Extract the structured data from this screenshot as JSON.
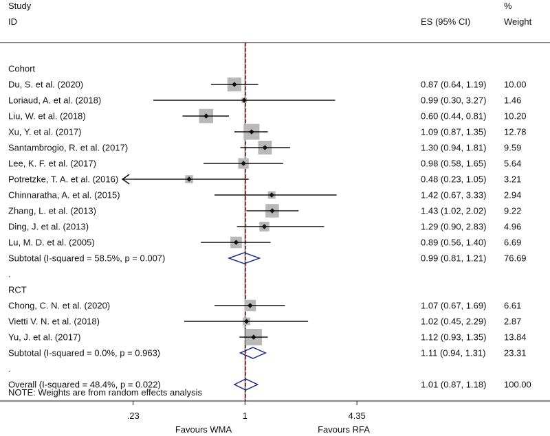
{
  "chart_data": {
    "type": "forest",
    "header": {
      "study_line1": "Study",
      "study_line2": "ID",
      "es_label": "ES (95% CI)",
      "weight_line1": "%",
      "weight_line2": "Weight"
    },
    "x_scale": "log",
    "xlim": [
      0.04,
      55
    ],
    "x_ticks": [
      {
        "value": 0.23,
        "label": ".23"
      },
      {
        "value": 1,
        "label": "1"
      },
      {
        "value": 4.35,
        "label": "4.35"
      }
    ],
    "overall_line_value": 1.01,
    "favours_left": "Favours WMA",
    "favours_right": "Favours RFA",
    "note": "NOTE: Weights are from random effects analysis",
    "rows": [
      {
        "kind": "group",
        "label": "Cohort"
      },
      {
        "kind": "study",
        "label": "Du, S. et al. (2020)",
        "es": 0.87,
        "lo": 0.64,
        "hi": 1.19,
        "es_text": "0.87 (0.64, 1.19)",
        "weight": 10.0,
        "weight_text": "10.00"
      },
      {
        "kind": "study",
        "label": "Loriaud, A. et al. (2018)",
        "es": 0.99,
        "lo": 0.3,
        "hi": 3.27,
        "es_text": "0.99 (0.30, 3.27)",
        "weight": 1.46,
        "weight_text": "1.46"
      },
      {
        "kind": "study",
        "label": "Liu, W. et al. (2018)",
        "es": 0.6,
        "lo": 0.44,
        "hi": 0.81,
        "es_text": "0.60 (0.44, 0.81)",
        "weight": 10.2,
        "weight_text": "10.20"
      },
      {
        "kind": "study",
        "label": "Xu, Y. et al. (2017)",
        "es": 1.09,
        "lo": 0.87,
        "hi": 1.35,
        "es_text": "1.09 (0.87, 1.35)",
        "weight": 12.78,
        "weight_text": "12.78"
      },
      {
        "kind": "study",
        "label": "Santambrogio, R. et al. (2017)",
        "es": 1.3,
        "lo": 0.94,
        "hi": 1.81,
        "es_text": "1.30 (0.94, 1.81)",
        "weight": 9.59,
        "weight_text": "9.59"
      },
      {
        "kind": "study",
        "label": "Lee, K. F. et al. (2017)",
        "es": 0.98,
        "lo": 0.58,
        "hi": 1.65,
        "es_text": "0.98 (0.58, 1.65)",
        "weight": 5.64,
        "weight_text": "5.64"
      },
      {
        "kind": "study",
        "label": "Potretzke, T. A. et al. (2016)",
        "es": 0.48,
        "lo": 0.23,
        "hi": 1.05,
        "es_text": "0.48 (0.23, 1.05)",
        "weight": 3.21,
        "weight_text": "3.21",
        "arrow_left": true
      },
      {
        "kind": "study",
        "label": "Chinnaratha, A. et al. (2015)",
        "es": 1.42,
        "lo": 0.67,
        "hi": 3.33,
        "es_text": "1.42 (0.67, 3.33)",
        "weight": 2.94,
        "weight_text": "2.94"
      },
      {
        "kind": "study",
        "label": "Zhang, L. et al. (2013)",
        "es": 1.43,
        "lo": 1.02,
        "hi": 2.02,
        "es_text": "1.43 (1.02, 2.02)",
        "weight": 9.22,
        "weight_text": "9.22"
      },
      {
        "kind": "study",
        "label": "Ding, J. et al. (2013)",
        "es": 1.29,
        "lo": 0.9,
        "hi": 2.83,
        "es_text": "1.29 (0.90, 2.83)",
        "weight": 4.96,
        "weight_text": "4.96"
      },
      {
        "kind": "study",
        "label": "Lu, M. D. et al. (2005)",
        "es": 0.89,
        "lo": 0.56,
        "hi": 1.4,
        "es_text": "0.89 (0.56, 1.40)",
        "weight": 6.69,
        "weight_text": "6.69"
      },
      {
        "kind": "subtotal",
        "label": "Subtotal  (I-squared = 58.5%, p = 0.007)",
        "es": 0.99,
        "lo": 0.81,
        "hi": 1.21,
        "es_text": "0.99 (0.81, 1.21)",
        "weight": 76.69,
        "weight_text": "76.69"
      },
      {
        "kind": "gap",
        "label": "."
      },
      {
        "kind": "group",
        "label": "RCT"
      },
      {
        "kind": "study",
        "label": "Chong, C. N. et al. (2020)",
        "es": 1.07,
        "lo": 0.67,
        "hi": 1.69,
        "es_text": "1.07 (0.67, 1.69)",
        "weight": 6.61,
        "weight_text": "6.61"
      },
      {
        "kind": "study",
        "label": "Vietti V. N. et al. (2018)",
        "es": 1.02,
        "lo": 0.45,
        "hi": 2.29,
        "es_text": "1.02 (0.45, 2.29)",
        "weight": 2.87,
        "weight_text": "2.87"
      },
      {
        "kind": "study",
        "label": "Yu, J. et al. (2017)",
        "es": 1.12,
        "lo": 0.93,
        "hi": 1.35,
        "es_text": "1.12 (0.93, 1.35)",
        "weight": 13.84,
        "weight_text": "13.84"
      },
      {
        "kind": "subtotal",
        "label": "Subtotal  (I-squared = 0.0%, p = 0.963)",
        "es": 1.11,
        "lo": 0.94,
        "hi": 1.31,
        "es_text": "1.11 (0.94, 1.31)",
        "weight": 23.31,
        "weight_text": "23.31"
      },
      {
        "kind": "gap",
        "label": "."
      },
      {
        "kind": "overall",
        "label": "Overall  (I-squared = 48.4%, p = 0.022)",
        "es": 1.01,
        "lo": 0.87,
        "hi": 1.18,
        "es_text": "1.01 (0.87, 1.18)",
        "weight": 100.0,
        "weight_text": "100.00"
      }
    ],
    "colors": {
      "text": "#111111",
      "ci_line": "#111111",
      "weight_box": "#b8b8b8",
      "point": "#111111",
      "diamond": "#1f2f8f",
      "null_line": "#111111",
      "overall_line": "#c0392b",
      "frame": "#111111"
    }
  }
}
